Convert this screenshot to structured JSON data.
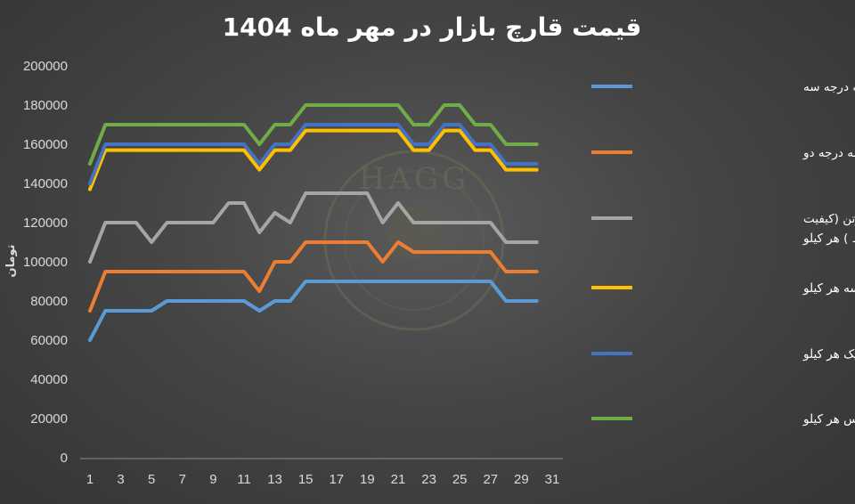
{
  "chart_data": {
    "type": "line",
    "title": "قیمت قارچ بازار در مهر ماه 1404",
    "ylabel": "تومان",
    "xlabel": "",
    "x": [
      1,
      2,
      3,
      4,
      5,
      6,
      7,
      8,
      9,
      10,
      11,
      12,
      13,
      14,
      15,
      16,
      17,
      18,
      19,
      20,
      21,
      22,
      23,
      24,
      25,
      26,
      27,
      28,
      29,
      30
    ],
    "x_ticks": [
      1,
      3,
      5,
      7,
      9,
      11,
      13,
      15,
      17,
      19,
      21,
      23,
      25,
      27,
      29,
      31
    ],
    "xlim": [
      1,
      31
    ],
    "ylim": [
      0,
      200000
    ],
    "y_ticks": [
      0,
      20000,
      40000,
      60000,
      80000,
      100000,
      120000,
      140000,
      160000,
      180000,
      200000
    ],
    "grid": "none",
    "legend_position": "right",
    "series": [
      {
        "name": "قارچ فله درجه سه",
        "color": "#5b9bd5",
        "values": [
          60000,
          75000,
          75000,
          75000,
          75000,
          80000,
          80000,
          80000,
          80000,
          80000,
          80000,
          75000,
          80000,
          80000,
          90000,
          90000,
          90000,
          90000,
          90000,
          90000,
          90000,
          90000,
          90000,
          90000,
          90000,
          90000,
          90000,
          80000,
          80000,
          80000
        ]
      },
      {
        "name": "قارچ فله درجه دو",
        "color": "#ed7d31",
        "values": [
          75000,
          95000,
          95000,
          95000,
          95000,
          95000,
          95000,
          95000,
          95000,
          95000,
          95000,
          85000,
          100000,
          100000,
          110000,
          110000,
          110000,
          110000,
          110000,
          100000,
          110000,
          105000,
          105000,
          105000,
          105000,
          105000,
          105000,
          95000,
          95000,
          95000
        ]
      },
      {
        "name": "قارچ فله در سبد و کیسه و کارتن (کیفیت متوسط ) هر کیلو",
        "color": "#a5a5a5",
        "values": [
          100000,
          120000,
          120000,
          120000,
          110000,
          120000,
          120000,
          120000,
          120000,
          130000,
          130000,
          115000,
          125000,
          120000,
          135000,
          135000,
          135000,
          135000,
          135000,
          120000,
          130000,
          120000,
          120000,
          120000,
          120000,
          120000,
          120000,
          110000,
          110000,
          110000
        ]
      },
      {
        "name": "قارچ فله در کیسه هر کیلو",
        "color": "#ffc000",
        "values": [
          137000,
          157000,
          157000,
          157000,
          157000,
          157000,
          157000,
          157000,
          157000,
          157000,
          157000,
          147000,
          157000,
          157000,
          167000,
          167000,
          167000,
          167000,
          167000,
          167000,
          167000,
          157000,
          157000,
          167000,
          167000,
          157000,
          157000,
          147000,
          147000,
          147000
        ]
      },
      {
        "name": "قارچ فله سبد درجه یک هر کیلو",
        "color": "#4472c4",
        "values": [
          140000,
          160000,
          160000,
          160000,
          160000,
          160000,
          160000,
          160000,
          160000,
          160000,
          160000,
          150000,
          160000,
          160000,
          170000,
          170000,
          170000,
          170000,
          170000,
          170000,
          170000,
          160000,
          160000,
          170000,
          170000,
          160000,
          160000,
          150000,
          150000,
          150000
        ]
      },
      {
        "name": "قارچ فله در سبد لوکس هر کیلو",
        "color": "#70ad47",
        "values": [
          150000,
          170000,
          170000,
          170000,
          170000,
          170000,
          170000,
          170000,
          170000,
          170000,
          170000,
          160000,
          170000,
          170000,
          180000,
          180000,
          180000,
          180000,
          180000,
          180000,
          180000,
          170000,
          170000,
          180000,
          180000,
          170000,
          170000,
          160000,
          160000,
          160000
        ]
      }
    ],
    "legend_lines": [
      [
        "قارچ فله درجه سه"
      ],
      [
        "قارچ فله درجه دو"
      ],
      [
        "قارچ فله در سبد و کیسه و کارتن (کیفیت",
        "متوسط ) هر کیلو"
      ],
      [
        "قارچ فله در کیسه هر کیلو"
      ],
      [
        "قارچ فله سبد درجه یک هر کیلو"
      ],
      [
        "قارچ فله در سبد لوکس هر کیلو"
      ]
    ],
    "watermark": "HAGG"
  }
}
